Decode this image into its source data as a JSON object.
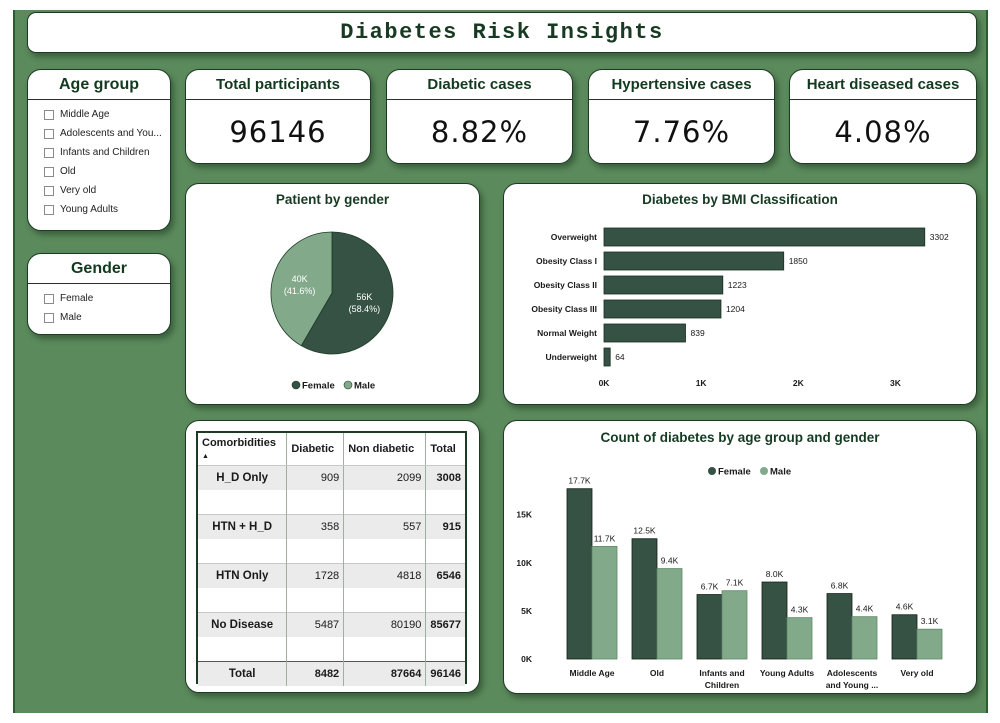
{
  "header": {
    "title": "Diabetes Risk Insights"
  },
  "colors": {
    "female": "#355244",
    "male": "#82a98a",
    "background": "#5b8a5c",
    "card_border": "#1d3b24"
  },
  "slicers": {
    "age_group": {
      "title": "Age group",
      "items": [
        "Middle Age",
        "Adolescents and You...",
        "Infants and Children",
        "Old",
        "Very old",
        "Young Adults"
      ]
    },
    "gender": {
      "title": "Gender",
      "items": [
        "Female",
        "Male"
      ]
    }
  },
  "kpis": [
    {
      "label": "Total participants",
      "value": "96146"
    },
    {
      "label": "Diabetic cases",
      "value": "8.82%"
    },
    {
      "label": "Hypertensive cases",
      "value": "7.76%"
    },
    {
      "label": "Heart diseased cases",
      "value": "4.08%"
    }
  ],
  "table": {
    "columns": [
      "Comorbidities",
      "Diabetic",
      "Non diabetic",
      "Total"
    ],
    "sort_indicator": "▲",
    "rows": [
      {
        "label": "H_D Only",
        "diabetic": "909",
        "non_diabetic": "2099",
        "total": "3008"
      },
      {
        "label": "HTN + H_D",
        "diabetic": "358",
        "non_diabetic": "557",
        "total": "915"
      },
      {
        "label": "HTN Only",
        "diabetic": "1728",
        "non_diabetic": "4818",
        "total": "6546"
      },
      {
        "label": "No Disease",
        "diabetic": "5487",
        "non_diabetic": "80190",
        "total": "85677"
      }
    ],
    "total": {
      "label": "Total",
      "diabetic": "8482",
      "non_diabetic": "87664",
      "total": "96146"
    }
  },
  "chart_data": [
    {
      "type": "pie",
      "title": "Patient by gender",
      "legend": [
        "Female",
        "Male"
      ],
      "legend_position": "bottom",
      "slices": [
        {
          "name": "Female",
          "value": 56,
          "percent": 58.4,
          "label": "56K",
          "pct_label": "(58.4%)"
        },
        {
          "name": "Male",
          "value": 40,
          "percent": 41.6,
          "label": "40K",
          "pct_label": "(41.6%)"
        }
      ]
    },
    {
      "type": "bar",
      "orientation": "horizontal",
      "title": "Diabetes by BMI Classification",
      "categories": [
        "Overweight",
        "Obesity Class I",
        "Obesity Class II",
        "Obesity Class III",
        "Normal Weight",
        "Underweight"
      ],
      "values": [
        3302,
        1850,
        1223,
        1204,
        839,
        64
      ],
      "xlim": [
        0,
        3500
      ],
      "xticks": [
        0,
        1000,
        2000,
        3000
      ],
      "xtick_labels": [
        "0K",
        "1K",
        "2K",
        "3K"
      ],
      "grid": false
    },
    {
      "type": "bar",
      "title": "Count of diabetes by age group and gender",
      "legend_position": "top",
      "categories": [
        "Middle Age",
        "Old",
        "Infants and Children",
        "Young Adults",
        "Adolescents and Young ...",
        "Very old"
      ],
      "category_lines": [
        [
          "Middle Age"
        ],
        [
          "Old"
        ],
        [
          "Infants and",
          "Children"
        ],
        [
          "Young Adults"
        ],
        [
          "Adolescents",
          "and Young ..."
        ],
        [
          "Very old"
        ]
      ],
      "series": [
        {
          "name": "Female",
          "values": [
            17700,
            12500,
            6700,
            8000,
            6800,
            4600
          ],
          "labels": [
            "17.7K",
            "12.5K",
            "6.7K",
            "8.0K",
            "6.8K",
            "4.6K"
          ]
        },
        {
          "name": "Male",
          "values": [
            11700,
            9400,
            7100,
            4300,
            4400,
            3100
          ],
          "labels": [
            "11.7K",
            "9.4K",
            "7.1K",
            "4.3K",
            "4.4K",
            "3.1K"
          ]
        }
      ],
      "ylim": [
        0,
        18500
      ],
      "yticks": [
        0,
        5000,
        10000,
        15000
      ],
      "ytick_labels": [
        "0K",
        "5K",
        "10K",
        "15K"
      ],
      "grid": false
    }
  ]
}
